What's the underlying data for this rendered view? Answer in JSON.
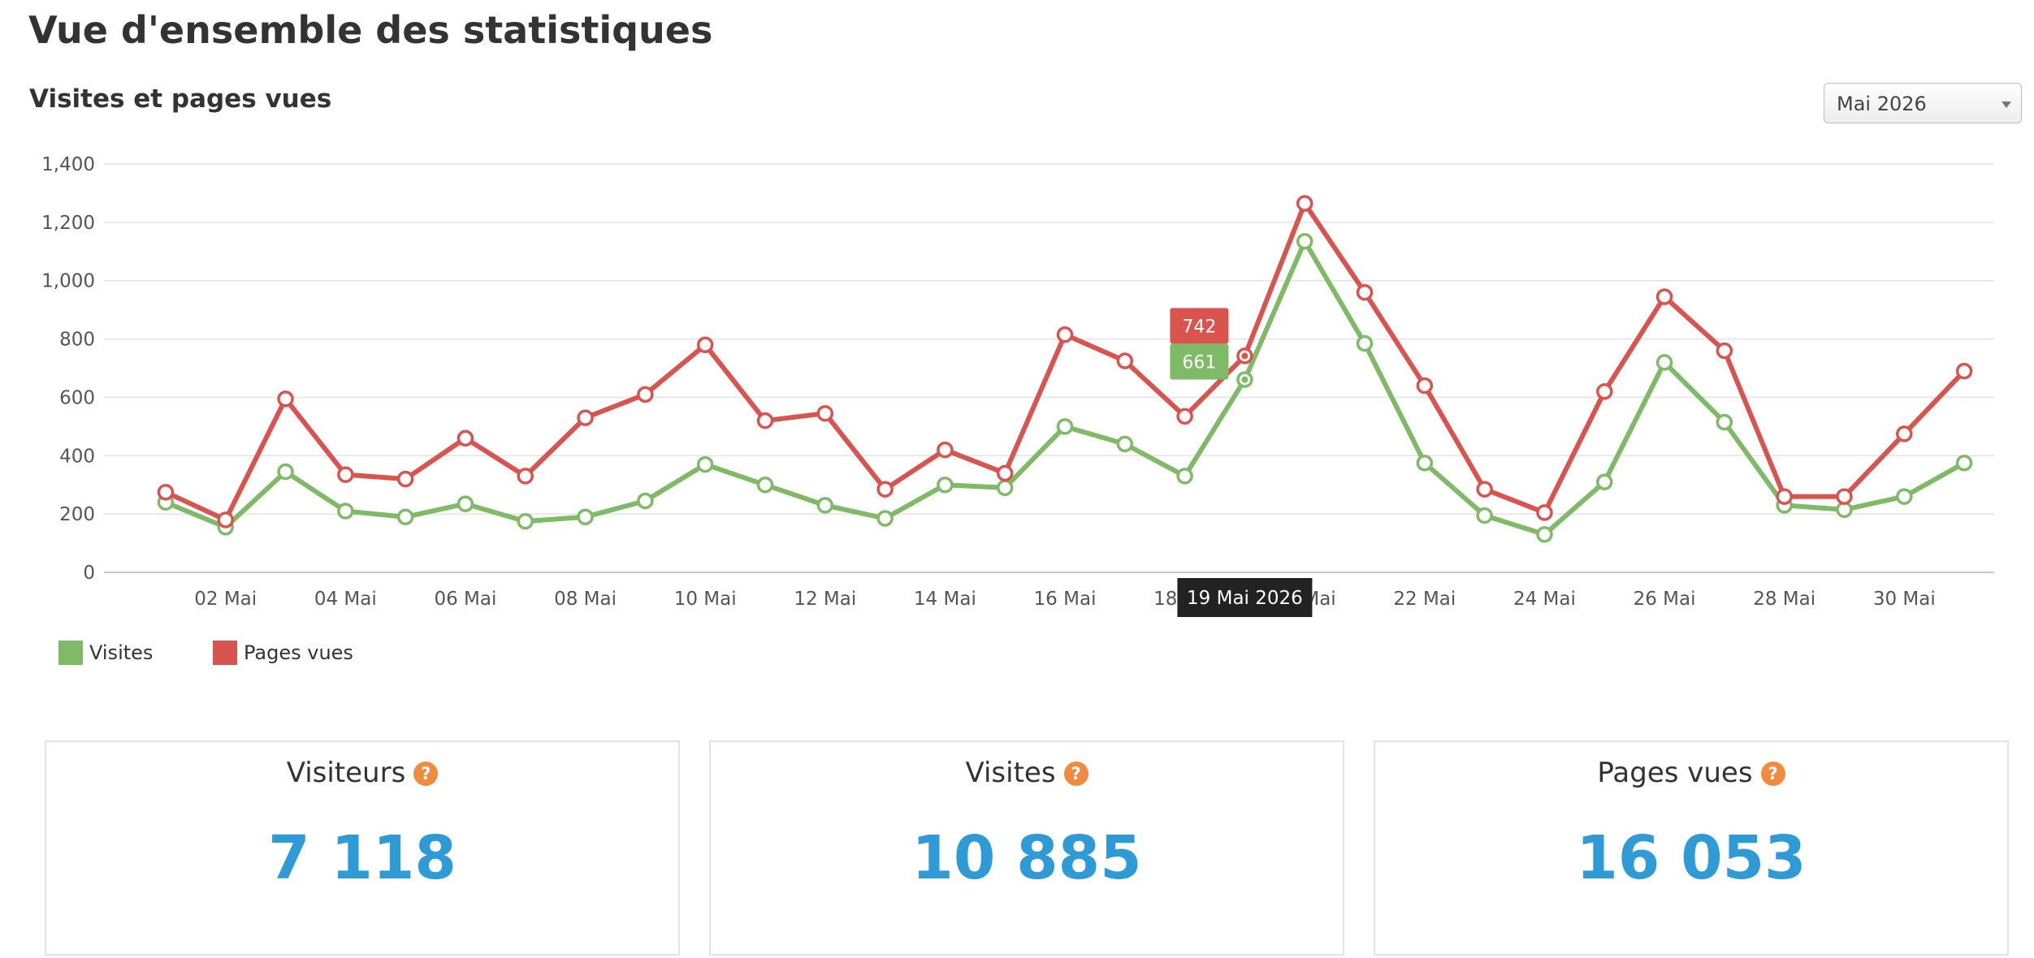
{
  "page": {
    "title": "Vue d'ensemble des statistiques"
  },
  "chart_section": {
    "title": "Visites et pages vues",
    "period_select": {
      "value": "Mai 2026"
    }
  },
  "chart_data": {
    "type": "line",
    "categories": [
      "01 Mai",
      "02 Mai",
      "03 Mai",
      "04 Mai",
      "05 Mai",
      "06 Mai",
      "07 Mai",
      "08 Mai",
      "09 Mai",
      "10 Mai",
      "11 Mai",
      "12 Mai",
      "13 Mai",
      "14 Mai",
      "15 Mai",
      "16 Mai",
      "17 Mai",
      "18 Mai",
      "19 Mai",
      "20 Mai",
      "21 Mai",
      "22 Mai",
      "23 Mai",
      "24 Mai",
      "25 Mai",
      "26 Mai",
      "27 Mai",
      "28 Mai",
      "29 Mai",
      "30 Mai",
      "31 Mai"
    ],
    "x_tick_labels": [
      "02 Mai",
      "04 Mai",
      "06 Mai",
      "08 Mai",
      "10 Mai",
      "12 Mai",
      "14 Mai",
      "16 Mai",
      "18 Mai",
      "20 Mai",
      "22 Mai",
      "24 Mai",
      "26 Mai",
      "28 Mai",
      "30 Mai"
    ],
    "y_ticks": [
      "0",
      "200",
      "400",
      "600",
      "800",
      "1,000",
      "1,200",
      "1,400"
    ],
    "ylim": [
      0,
      1400
    ],
    "grid": true,
    "legend_position": "bottom-left",
    "series": [
      {
        "name": "Visites",
        "color": "#7fba66",
        "values": [
          240,
          155,
          345,
          210,
          190,
          235,
          175,
          190,
          245,
          370,
          300,
          230,
          185,
          300,
          290,
          500,
          440,
          330,
          661,
          1135,
          785,
          375,
          195,
          130,
          310,
          720,
          515,
          230,
          215,
          260,
          375
        ]
      },
      {
        "name": "Pages vues",
        "color": "#d9534f",
        "values": [
          275,
          180,
          595,
          335,
          320,
          460,
          330,
          530,
          610,
          780,
          520,
          545,
          285,
          420,
          340,
          815,
          725,
          535,
          742,
          1265,
          960,
          640,
          285,
          205,
          620,
          945,
          760,
          260,
          260,
          475,
          690
        ]
      }
    ],
    "tooltip": {
      "date_label": "19 Mai 2026",
      "index": 18,
      "values": [
        "742",
        "661"
      ]
    }
  },
  "stats": [
    {
      "label": "Visiteurs",
      "value": "7 118",
      "help_icon": "?"
    },
    {
      "label": "Visites",
      "value": "10 885",
      "help_icon": "?"
    },
    {
      "label": "Pages vues",
      "value": "16 053",
      "help_icon": "?"
    }
  ]
}
